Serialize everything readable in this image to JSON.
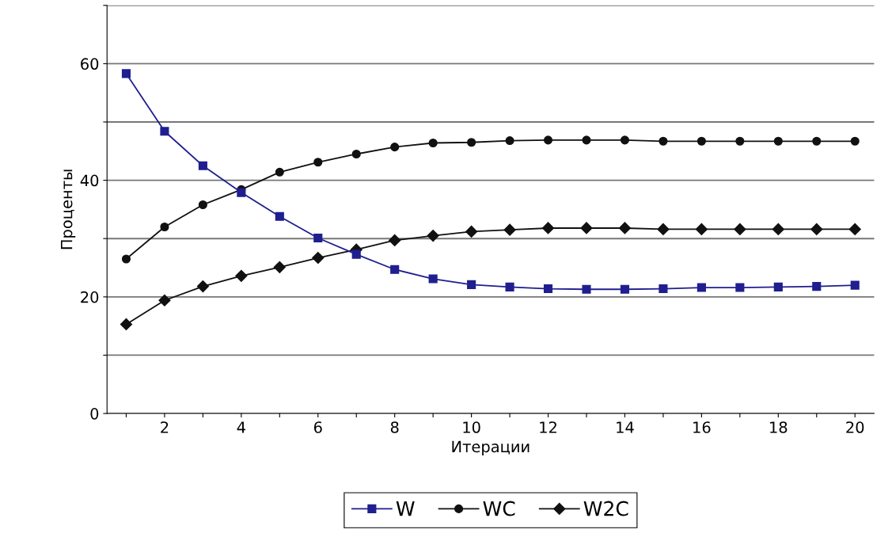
{
  "chart_data": {
    "type": "line",
    "xlabel": "Итерации",
    "ylabel": "Проценты",
    "categories": [
      null,
      "2",
      null,
      "4",
      null,
      "6",
      null,
      "8",
      null,
      "10",
      null,
      "12",
      null,
      "14",
      null,
      "16",
      null,
      "18",
      null,
      "20"
    ],
    "series": [
      {
        "name": "W",
        "color": "#1f1f8f",
        "marker": "square",
        "values": [
          58.3,
          48.4,
          42.5,
          37.9,
          33.8,
          30.1,
          27.3,
          24.7,
          23.1,
          22.1,
          21.7,
          21.4,
          21.3,
          21.3,
          21.4,
          21.6,
          21.6,
          21.7,
          21.8,
          22.0
        ]
      },
      {
        "name": "WC",
        "color": "#111111",
        "marker": "circle",
        "values": [
          26.5,
          32.0,
          35.8,
          38.4,
          41.4,
          43.1,
          44.5,
          45.7,
          46.4,
          46.5,
          46.8,
          46.9,
          46.9,
          46.9,
          46.7,
          46.7,
          46.7,
          46.7,
          46.7,
          46.7
        ]
      },
      {
        "name": "W2C",
        "color": "#111111",
        "marker": "diamond",
        "values": [
          15.3,
          19.4,
          21.8,
          23.6,
          25.1,
          26.7,
          28.1,
          29.7,
          30.5,
          31.2,
          31.5,
          31.8,
          31.8,
          31.8,
          31.6,
          31.6,
          31.6,
          31.6,
          31.6,
          31.6
        ]
      }
    ],
    "ylim": [
      0,
      70
    ],
    "yticks": [
      0,
      {
        "value": 10,
        "label": null
      },
      20,
      {
        "value": 30,
        "label": null
      },
      40,
      {
        "value": 50,
        "label": null
      },
      60,
      {
        "value": 70,
        "label": null
      }
    ],
    "grid": "y",
    "legend": "bottom",
    "line_style": "solid"
  }
}
